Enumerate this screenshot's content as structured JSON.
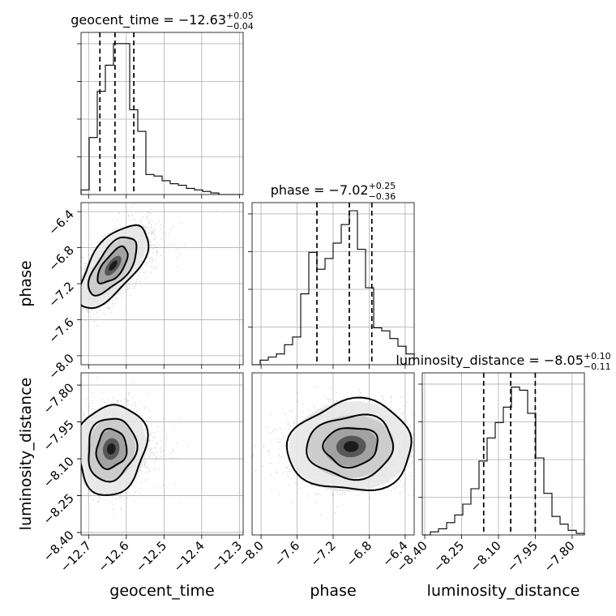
{
  "chart_data": {
    "type": "corner",
    "parameters": [
      {
        "name": "geocent_time",
        "axis_label": "geocent_time",
        "median": -12.63,
        "q_lo": -12.67,
        "q_hi": -12.58,
        "title": "geocent_time = −12.63",
        "err_plus": "+0.05",
        "err_minus": "−0.04",
        "range": [
          -12.72,
          -12.29
        ],
        "ticks": [
          -12.7,
          -12.6,
          -12.5,
          -12.4,
          -12.3
        ],
        "tick_labels": [
          "−12.7",
          "−12.6",
          "−12.5",
          "−12.4",
          "−12.3"
        ],
        "hist_values": [
          0.03,
          0.37,
          0.67,
          0.84,
          0.98,
          0.98,
          0.55,
          0.41,
          0.13,
          0.12,
          0.09,
          0.07,
          0.06,
          0.04,
          0.03,
          0.02,
          0.01,
          0.0,
          0.0,
          0.0
        ]
      },
      {
        "name": "phase",
        "axis_label": "phase",
        "median": -7.02,
        "q_lo": -7.38,
        "q_hi": -6.77,
        "title": "phase = −7.02",
        "err_plus": "+0.25",
        "err_minus": "−0.36",
        "range": [
          -8.1,
          -6.3
        ],
        "ticks": [
          -8.0,
          -7.6,
          -7.2,
          -6.8,
          -6.4
        ],
        "tick_labels": [
          "−8.0",
          "−7.6",
          "−7.2",
          "−6.8",
          "−6.4"
        ],
        "hist_values": [
          0.0,
          0.03,
          0.05,
          0.07,
          0.13,
          0.18,
          0.46,
          0.73,
          0.62,
          0.69,
          0.79,
          0.91,
          1.0,
          0.75,
          0.5,
          0.24,
          0.22,
          0.17,
          0.12,
          0.07
        ]
      },
      {
        "name": "luminosity_distance",
        "axis_label": "luminosity_distance",
        "median": -8.05,
        "q_lo": -8.16,
        "q_hi": -7.95,
        "title": "luminosity_distance = −8.05",
        "err_plus": "+0.10",
        "err_minus": "−0.11",
        "range": [
          -8.41,
          -7.75
        ],
        "ticks": [
          -8.4,
          -8.25,
          -8.1,
          -7.95,
          -7.8
        ],
        "tick_labels": [
          "−8.40",
          "−8.25",
          "−8.10",
          "−7.95",
          "−7.80"
        ],
        "hist_values": [
          0.0,
          0.02,
          0.04,
          0.08,
          0.13,
          0.2,
          0.3,
          0.48,
          0.63,
          0.73,
          0.83,
          0.96,
          0.94,
          0.79,
          0.5,
          0.27,
          0.12,
          0.07,
          0.03,
          0.01
        ]
      }
    ],
    "pairs": [
      {
        "x": "geocent_time",
        "y": "phase",
        "mean": [
          -12.635,
          -7.0
        ],
        "std": [
          0.04,
          0.2
        ],
        "corr": 0.65,
        "contour_levels": [
          1.0,
          1.6,
          2.3
        ]
      },
      {
        "x": "geocent_time",
        "y": "luminosity_distance",
        "mean": [
          -12.64,
          -8.06
        ],
        "std": [
          0.04,
          0.08
        ],
        "corr": 0.1,
        "contour_levels": [
          1.0,
          1.6,
          2.3
        ]
      },
      {
        "x": "phase",
        "y": "luminosity_distance",
        "mean": [
          -7.0,
          -8.05
        ],
        "std": [
          0.3,
          0.08
        ],
        "corr": 0.05,
        "contour_levels": [
          1.0,
          1.6,
          2.3
        ]
      }
    ],
    "grid": true,
    "tick_rotation": 45
  }
}
